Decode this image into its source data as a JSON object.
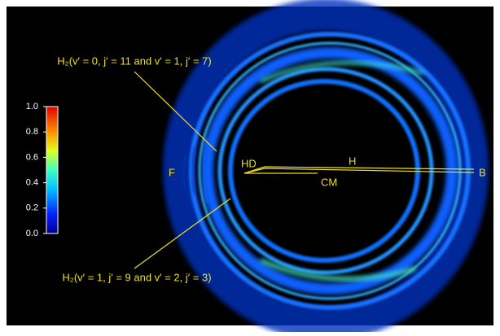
{
  "annotations": {
    "upper_state": "H₂(v′ = 0, j′ = 11 and v′ = 1, j′ = 7)",
    "lower_state": "H₂(v′ = 1, j′ = 9 and v′ = 2, j′ = 3)",
    "F": "F",
    "HD": "HD",
    "H": "H",
    "CM": "CM",
    "B": "B"
  },
  "colorbar": {
    "lim": [
      0,
      1
    ],
    "ticks": [
      {
        "value": 0,
        "label": "0.0"
      },
      0.2,
      0.4,
      0.6,
      0.8,
      {
        "value": 1,
        "label": "1.0"
      }
    ]
  }
}
